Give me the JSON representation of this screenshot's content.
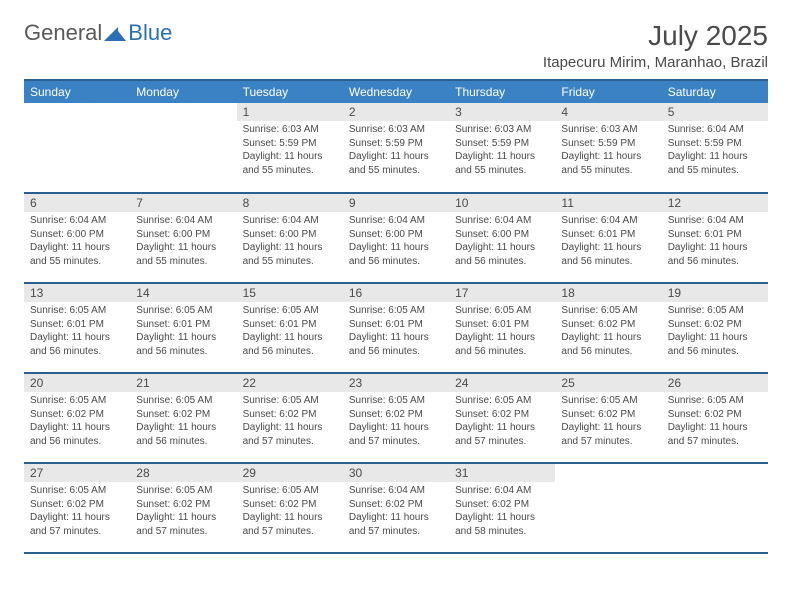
{
  "logo": {
    "general": "General",
    "blue": "Blue"
  },
  "title": "July 2025",
  "location": "Itapecuru Mirim, Maranhao, Brazil",
  "colors": {
    "header_bg": "#3b82c4",
    "header_border": "#2a5f8f",
    "daynum_bg": "#e8e8e8",
    "text": "#4a4a4a",
    "logo_gray": "#5a5a5a",
    "logo_blue": "#2a6fb5"
  },
  "weekdays": [
    "Sunday",
    "Monday",
    "Tuesday",
    "Wednesday",
    "Thursday",
    "Friday",
    "Saturday"
  ],
  "weeks": [
    [
      null,
      null,
      {
        "n": "1",
        "sr": "6:03 AM",
        "ss": "5:59 PM",
        "dl": "11 hours and 55 minutes."
      },
      {
        "n": "2",
        "sr": "6:03 AM",
        "ss": "5:59 PM",
        "dl": "11 hours and 55 minutes."
      },
      {
        "n": "3",
        "sr": "6:03 AM",
        "ss": "5:59 PM",
        "dl": "11 hours and 55 minutes."
      },
      {
        "n": "4",
        "sr": "6:03 AM",
        "ss": "5:59 PM",
        "dl": "11 hours and 55 minutes."
      },
      {
        "n": "5",
        "sr": "6:04 AM",
        "ss": "5:59 PM",
        "dl": "11 hours and 55 minutes."
      }
    ],
    [
      {
        "n": "6",
        "sr": "6:04 AM",
        "ss": "6:00 PM",
        "dl": "11 hours and 55 minutes."
      },
      {
        "n": "7",
        "sr": "6:04 AM",
        "ss": "6:00 PM",
        "dl": "11 hours and 55 minutes."
      },
      {
        "n": "8",
        "sr": "6:04 AM",
        "ss": "6:00 PM",
        "dl": "11 hours and 55 minutes."
      },
      {
        "n": "9",
        "sr": "6:04 AM",
        "ss": "6:00 PM",
        "dl": "11 hours and 56 minutes."
      },
      {
        "n": "10",
        "sr": "6:04 AM",
        "ss": "6:00 PM",
        "dl": "11 hours and 56 minutes."
      },
      {
        "n": "11",
        "sr": "6:04 AM",
        "ss": "6:01 PM",
        "dl": "11 hours and 56 minutes."
      },
      {
        "n": "12",
        "sr": "6:04 AM",
        "ss": "6:01 PM",
        "dl": "11 hours and 56 minutes."
      }
    ],
    [
      {
        "n": "13",
        "sr": "6:05 AM",
        "ss": "6:01 PM",
        "dl": "11 hours and 56 minutes."
      },
      {
        "n": "14",
        "sr": "6:05 AM",
        "ss": "6:01 PM",
        "dl": "11 hours and 56 minutes."
      },
      {
        "n": "15",
        "sr": "6:05 AM",
        "ss": "6:01 PM",
        "dl": "11 hours and 56 minutes."
      },
      {
        "n": "16",
        "sr": "6:05 AM",
        "ss": "6:01 PM",
        "dl": "11 hours and 56 minutes."
      },
      {
        "n": "17",
        "sr": "6:05 AM",
        "ss": "6:01 PM",
        "dl": "11 hours and 56 minutes."
      },
      {
        "n": "18",
        "sr": "6:05 AM",
        "ss": "6:02 PM",
        "dl": "11 hours and 56 minutes."
      },
      {
        "n": "19",
        "sr": "6:05 AM",
        "ss": "6:02 PM",
        "dl": "11 hours and 56 minutes."
      }
    ],
    [
      {
        "n": "20",
        "sr": "6:05 AM",
        "ss": "6:02 PM",
        "dl": "11 hours and 56 minutes."
      },
      {
        "n": "21",
        "sr": "6:05 AM",
        "ss": "6:02 PM",
        "dl": "11 hours and 56 minutes."
      },
      {
        "n": "22",
        "sr": "6:05 AM",
        "ss": "6:02 PM",
        "dl": "11 hours and 57 minutes."
      },
      {
        "n": "23",
        "sr": "6:05 AM",
        "ss": "6:02 PM",
        "dl": "11 hours and 57 minutes."
      },
      {
        "n": "24",
        "sr": "6:05 AM",
        "ss": "6:02 PM",
        "dl": "11 hours and 57 minutes."
      },
      {
        "n": "25",
        "sr": "6:05 AM",
        "ss": "6:02 PM",
        "dl": "11 hours and 57 minutes."
      },
      {
        "n": "26",
        "sr": "6:05 AM",
        "ss": "6:02 PM",
        "dl": "11 hours and 57 minutes."
      }
    ],
    [
      {
        "n": "27",
        "sr": "6:05 AM",
        "ss": "6:02 PM",
        "dl": "11 hours and 57 minutes."
      },
      {
        "n": "28",
        "sr": "6:05 AM",
        "ss": "6:02 PM",
        "dl": "11 hours and 57 minutes."
      },
      {
        "n": "29",
        "sr": "6:05 AM",
        "ss": "6:02 PM",
        "dl": "11 hours and 57 minutes."
      },
      {
        "n": "30",
        "sr": "6:04 AM",
        "ss": "6:02 PM",
        "dl": "11 hours and 57 minutes."
      },
      {
        "n": "31",
        "sr": "6:04 AM",
        "ss": "6:02 PM",
        "dl": "11 hours and 58 minutes."
      },
      null,
      null
    ]
  ],
  "labels": {
    "sunrise": "Sunrise:",
    "sunset": "Sunset:",
    "daylight": "Daylight:"
  }
}
